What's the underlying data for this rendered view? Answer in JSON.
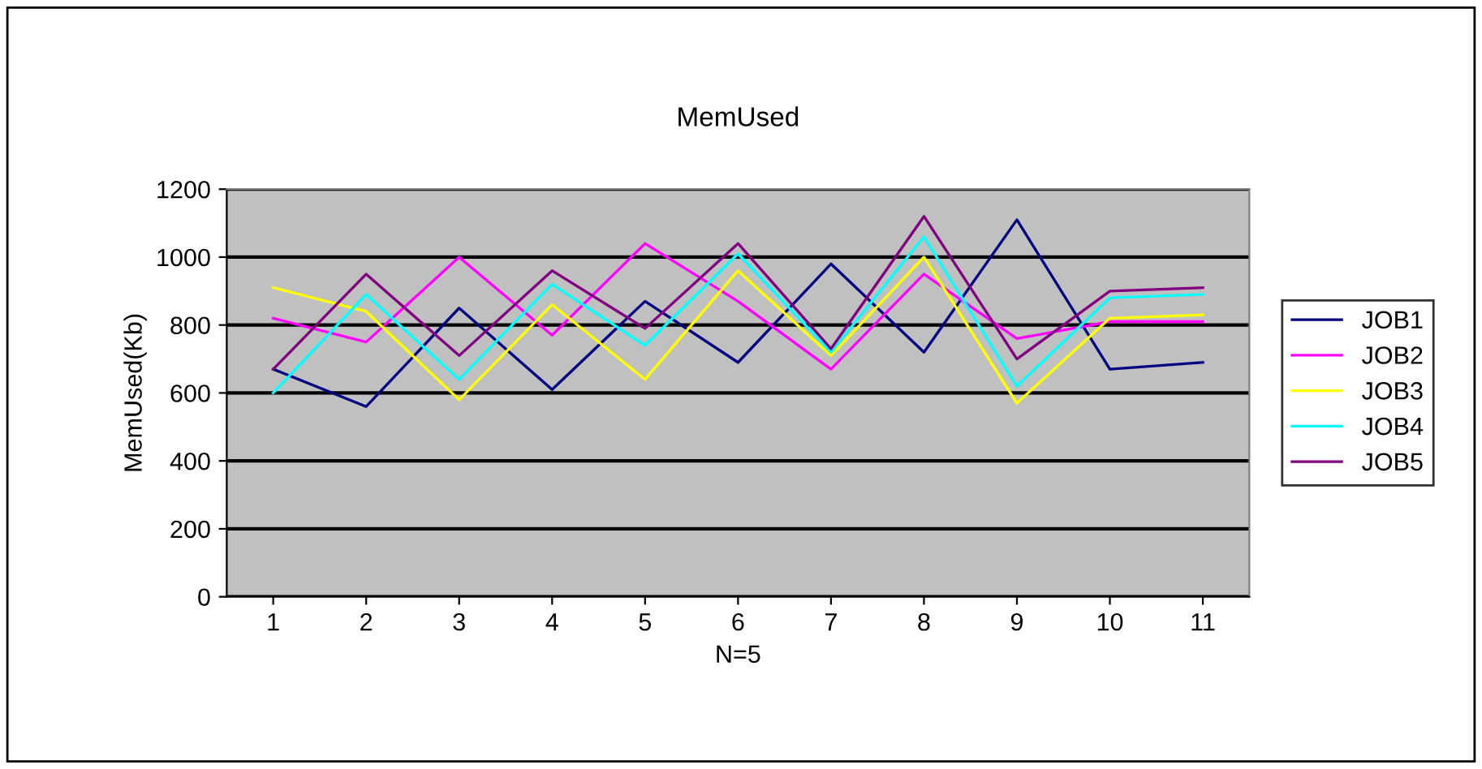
{
  "chart_data": {
    "type": "line",
    "title": "MemUsed",
    "xlabel": "N=5",
    "ylabel": "MemUsed(Kb)",
    "categories": [
      "1",
      "2",
      "3",
      "4",
      "5",
      "6",
      "7",
      "8",
      "9",
      "10",
      "11"
    ],
    "series": [
      {
        "name": "JOB1",
        "color": "#000080",
        "values": [
          670,
          560,
          850,
          610,
          870,
          690,
          980,
          720,
          1110,
          670,
          690
        ]
      },
      {
        "name": "JOB2",
        "color": "#ff00ff",
        "values": [
          820,
          750,
          1000,
          770,
          1040,
          870,
          670,
          950,
          760,
          810,
          810
        ]
      },
      {
        "name": "JOB3",
        "color": "#ffff00",
        "values": [
          910,
          840,
          580,
          860,
          640,
          960,
          710,
          1000,
          570,
          820,
          830
        ]
      },
      {
        "name": "JOB4",
        "color": "#00ffff",
        "values": [
          600,
          890,
          640,
          920,
          740,
          1010,
          720,
          1060,
          620,
          880,
          890
        ]
      },
      {
        "name": "JOB5",
        "color": "#800080",
        "values": [
          670,
          950,
          710,
          960,
          790,
          1040,
          730,
          1120,
          700,
          900,
          910
        ]
      }
    ],
    "ylim": [
      0,
      1200
    ],
    "yticks": [
      0,
      200,
      400,
      600,
      800,
      1000,
      1200
    ],
    "grid": "y",
    "legend": "right",
    "marker": "none"
  }
}
